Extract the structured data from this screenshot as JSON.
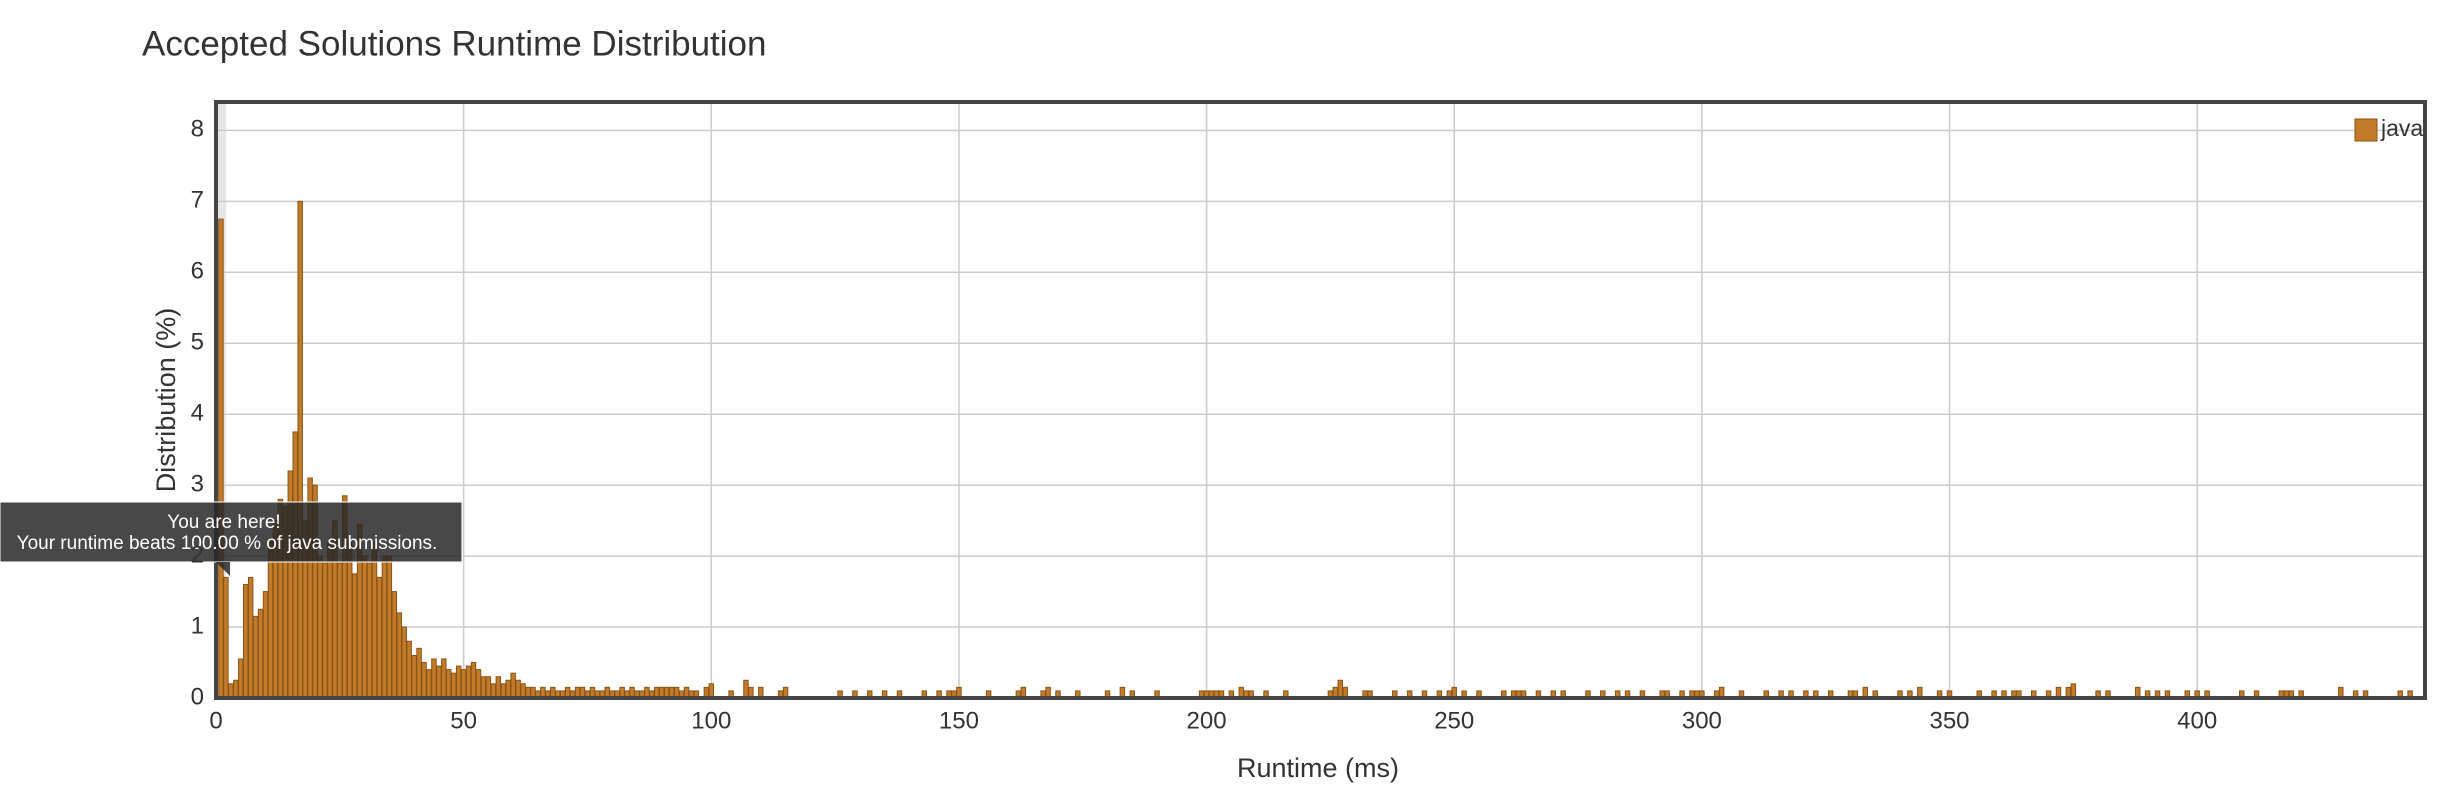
{
  "chart_data": {
    "type": "bar",
    "title": "Accepted Solutions Runtime Distribution",
    "xlabel": "Runtime (ms)",
    "ylabel": "Distribution (%)",
    "annotation": {
      "title": "You are here!",
      "text": "Your runtime beats 100.00 % of java submissions."
    },
    "legend": "top-right",
    "grid": true,
    "xlim": [
      0,
      446
    ],
    "xticks": [
      0,
      50,
      100,
      150,
      200,
      250,
      300,
      350,
      400
    ],
    "ylim": [
      0,
      8.4
    ],
    "yticks": [
      0,
      1,
      2,
      3,
      4,
      5,
      6,
      7,
      8
    ],
    "x": [
      1,
      2,
      3,
      4,
      5,
      6,
      7,
      8,
      9,
      10,
      11,
      12,
      13,
      14,
      15,
      16,
      17,
      18,
      19,
      20,
      21,
      22,
      23,
      24,
      25,
      26,
      27,
      28,
      29,
      30,
      31,
      32,
      33,
      34,
      35,
      36,
      37,
      38,
      39,
      40,
      41,
      42,
      43,
      44,
      45,
      46,
      47,
      48,
      49,
      50,
      51,
      52,
      53,
      54,
      55,
      56,
      57,
      58,
      59,
      60,
      61,
      62,
      63,
      64,
      65,
      66,
      67,
      68,
      69,
      70,
      71,
      72,
      73,
      74,
      75,
      76,
      77,
      78,
      79,
      80,
      81,
      82,
      83,
      84,
      85,
      86,
      87,
      88,
      89,
      90,
      91,
      92,
      93,
      94,
      95,
      96,
      97,
      99,
      100,
      104,
      107,
      108,
      110,
      114,
      115,
      126,
      129,
      132,
      135,
      138,
      143,
      146,
      148,
      149,
      150,
      156,
      162,
      163,
      167,
      168,
      170,
      174,
      180,
      183,
      185,
      190,
      199,
      200,
      201,
      202,
      203,
      205,
      207,
      208,
      209,
      212,
      216,
      225,
      226,
      227,
      228,
      232,
      233,
      238,
      241,
      244,
      247,
      249,
      250,
      252,
      255,
      260,
      262,
      263,
      264,
      267,
      270,
      272,
      277,
      280,
      283,
      285,
      288,
      292,
      293,
      296,
      298,
      299,
      300,
      303,
      304,
      308,
      313,
      316,
      318,
      321,
      323,
      326,
      330,
      331,
      333,
      335,
      340,
      342,
      344,
      348,
      350,
      356,
      359,
      361,
      363,
      364,
      367,
      370,
      372,
      374,
      375,
      380,
      382,
      388,
      390,
      392,
      394,
      398,
      400,
      402,
      409,
      412,
      417,
      418,
      419,
      421,
      429,
      432,
      434,
      441,
      443
    ],
    "series": [
      {
        "name": "java",
        "color": "#c27b2a",
        "values": [
          6.75,
          1.7,
          0.2,
          0.25,
          0.55,
          1.6,
          1.7,
          1.15,
          1.25,
          1.5,
          2.2,
          2.5,
          2.8,
          2.7,
          3.2,
          3.75,
          7.0,
          2.5,
          3.1,
          3.0,
          2.0,
          1.9,
          2.2,
          2.5,
          1.9,
          2.85,
          2.2,
          1.75,
          2.45,
          2.0,
          1.9,
          2.2,
          1.7,
          2.0,
          2.0,
          1.5,
          1.2,
          1.0,
          0.8,
          0.6,
          0.7,
          0.5,
          0.4,
          0.55,
          0.45,
          0.55,
          0.4,
          0.35,
          0.45,
          0.4,
          0.45,
          0.5,
          0.4,
          0.3,
          0.3,
          0.2,
          0.3,
          0.2,
          0.25,
          0.35,
          0.25,
          0.2,
          0.15,
          0.15,
          0.1,
          0.15,
          0.1,
          0.15,
          0.1,
          0.1,
          0.15,
          0.1,
          0.15,
          0.15,
          0.1,
          0.15,
          0.1,
          0.1,
          0.15,
          0.1,
          0.1,
          0.15,
          0.1,
          0.15,
          0.1,
          0.1,
          0.15,
          0.1,
          0.15,
          0.15,
          0.15,
          0.15,
          0.15,
          0.1,
          0.15,
          0.1,
          0.1,
          0.15,
          0.2,
          0.1,
          0.25,
          0.15,
          0.15,
          0.1,
          0.15,
          0.1,
          0.1,
          0.1,
          0.1,
          0.1,
          0.1,
          0.1,
          0.1,
          0.1,
          0.15,
          0.1,
          0.1,
          0.15,
          0.1,
          0.15,
          0.1,
          0.1,
          0.1,
          0.15,
          0.1,
          0.1,
          0.1,
          0.1,
          0.1,
          0.1,
          0.1,
          0.1,
          0.15,
          0.1,
          0.1,
          0.1,
          0.1,
          0.1,
          0.15,
          0.25,
          0.15,
          0.1,
          0.1,
          0.1,
          0.1,
          0.1,
          0.1,
          0.1,
          0.15,
          0.1,
          0.1,
          0.1,
          0.1,
          0.1,
          0.1,
          0.1,
          0.1,
          0.1,
          0.1,
          0.1,
          0.1,
          0.1,
          0.1,
          0.1,
          0.1,
          0.1,
          0.1,
          0.1,
          0.1,
          0.1,
          0.15,
          0.1,
          0.1,
          0.1,
          0.1,
          0.1,
          0.1,
          0.1,
          0.1,
          0.1,
          0.15,
          0.1,
          0.1,
          0.1,
          0.15,
          0.1,
          0.1,
          0.1,
          0.1,
          0.1,
          0.1,
          0.1,
          0.1,
          0.1,
          0.15,
          0.15,
          0.2,
          0.1,
          0.1,
          0.15,
          0.1,
          0.1,
          0.1,
          0.1,
          0.1,
          0.1,
          0.1,
          0.1,
          0.1,
          0.1,
          0.1,
          0.1,
          0.15,
          0.1,
          0.1,
          0.1,
          0.1
        ]
      }
    ]
  }
}
